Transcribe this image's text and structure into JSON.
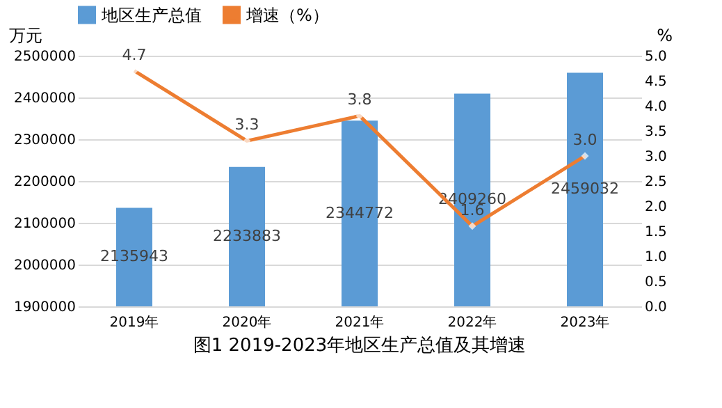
{
  "chart_data": {
    "type": "bar",
    "title": "图1 2019-2023年地区生产总值及其增速",
    "ylabel": "万元",
    "y2label": "%",
    "categories": [
      "2019年",
      "2020年",
      "2021年",
      "2022年",
      "2023年"
    ],
    "series": [
      {
        "name": "地区生产总值",
        "color": "#5b9bd5",
        "values": [
          2135943,
          2233883,
          2344772,
          2409260,
          2459032
        ]
      },
      {
        "name": "增速（%）",
        "type": "line",
        "axis": "y2",
        "color": "#ed7d31",
        "values": [
          4.7,
          3.3,
          3.8,
          1.6,
          3.0
        ],
        "value_labels": [
          "4.7",
          "3.3",
          "3.8",
          "1.6",
          "3.0"
        ]
      }
    ],
    "data_labels": true,
    "ylim": [
      1900000,
      2500000
    ],
    "yticks": [
      1900000,
      2000000,
      2100000,
      2200000,
      2300000,
      2400000,
      2500000
    ],
    "y2lim": [
      0,
      5
    ],
    "y2ticks": [
      {
        "value": 0,
        "label": "0.0"
      },
      {
        "value": 0.5,
        "label": "0.5"
      },
      {
        "value": 1,
        "label": "1.0"
      },
      {
        "value": 1.5,
        "label": "1.5"
      },
      {
        "value": 2,
        "label": "2.0"
      },
      {
        "value": 2.5,
        "label": "2.5"
      },
      {
        "value": 3,
        "label": "3.0"
      },
      {
        "value": 3.5,
        "label": "3.5"
      },
      {
        "value": 4,
        "label": "4.0"
      },
      {
        "value": 4.5,
        "label": "4.5"
      },
      {
        "value": 5,
        "label": "5.0"
      }
    ],
    "grid": "y",
    "legend": "top",
    "marker": "diamond",
    "line_style": "solid"
  }
}
